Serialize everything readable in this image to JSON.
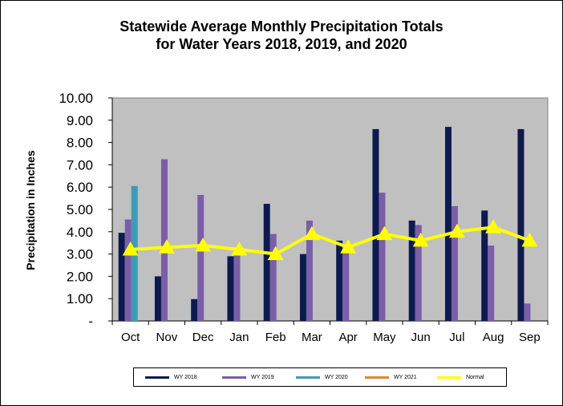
{
  "chart_data": {
    "type": "bar",
    "title": [
      "Statewide Average Monthly Precipitation Totals",
      "for Water Years 2018, 2019, and 2020"
    ],
    "xlabel": "",
    "ylabel": "Precipitation in Inches",
    "ylim": [
      0,
      10
    ],
    "yticks": [
      "-",
      "1.00",
      "2.00",
      "3.00",
      "4.00",
      "5.00",
      "6.00",
      "7.00",
      "8.00",
      "9.00",
      "10.00"
    ],
    "categories": [
      "Oct",
      "Nov",
      "Dec",
      "Jan",
      "Feb",
      "Mar",
      "Apr",
      "May",
      "Jun",
      "Jul",
      "Aug",
      "Sep"
    ],
    "grid": false,
    "legend_position": "bottom",
    "plot_background": "#c0c0c0",
    "series": [
      {
        "name": "WY 2018",
        "type": "bar",
        "color": "#0d1a4f",
        "values": [
          3.95,
          2.0,
          0.98,
          2.9,
          5.25,
          3.0,
          3.6,
          8.6,
          4.5,
          8.7,
          4.95,
          8.6
        ]
      },
      {
        "name": "WY 2019",
        "type": "bar",
        "color": "#7a5ea8",
        "values": [
          4.55,
          7.25,
          5.65,
          3.2,
          3.9,
          4.5,
          3.2,
          5.75,
          4.3,
          5.15,
          3.38,
          0.78
        ]
      },
      {
        "name": "WY 2020",
        "type": "bar",
        "color": "#3f9bb5",
        "values": [
          6.05,
          null,
          null,
          null,
          null,
          null,
          null,
          null,
          null,
          null,
          null,
          null
        ]
      },
      {
        "name": "WY 2021",
        "type": "bar",
        "color": "#e0852f",
        "values": [
          null,
          null,
          null,
          null,
          null,
          null,
          null,
          null,
          null,
          null,
          null,
          null
        ]
      },
      {
        "name": "Normal",
        "type": "line",
        "color": "#ffff00",
        "values": [
          3.2,
          3.3,
          3.38,
          3.2,
          3.0,
          3.9,
          3.3,
          3.9,
          3.6,
          4.0,
          4.2,
          3.6
        ]
      }
    ]
  }
}
